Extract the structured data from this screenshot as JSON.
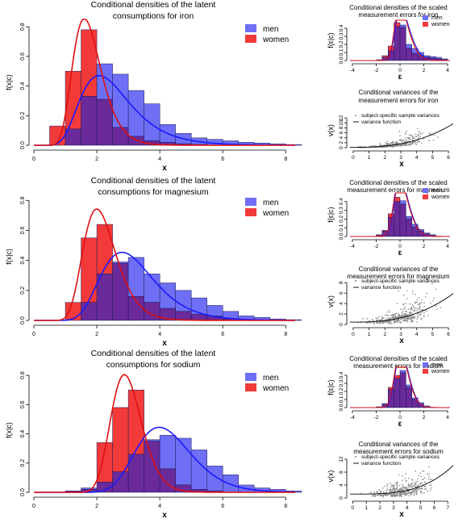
{
  "colors": {
    "men": "#6f6ff5",
    "women": "#f23a3a",
    "overlap": "#6a2a9a",
    "men_curve": "#1a1aff",
    "women_curve": "#e01010",
    "points": "#8a8a8a"
  },
  "chart_data": [
    {
      "id": "iron-density",
      "type": "bar",
      "title_lines": [
        "Conditional densities of the latent",
        "consumptions for iron"
      ],
      "xlabel": "x",
      "ylabel": "f(x|c)",
      "xlim": [
        0,
        8.3
      ],
      "ylim": [
        0,
        0.85
      ],
      "xticks": [
        0,
        2,
        4,
        6,
        8
      ],
      "yticks": [
        0.0,
        0.2,
        0.4,
        0.6,
        0.8
      ],
      "legend_position": "top-right",
      "bin_edges": [
        0.5,
        1.0,
        1.5,
        2.0,
        2.5,
        3.0,
        3.5,
        4.0,
        4.5,
        5.0,
        5.5,
        6.0,
        6.5,
        7.0,
        7.5,
        8.0,
        8.5
      ],
      "series": [
        {
          "name": "men",
          "values": [
            0.0,
            0.11,
            0.33,
            0.55,
            0.48,
            0.37,
            0.28,
            0.14,
            0.08,
            0.05,
            0.04,
            0.03,
            0.02,
            0.015,
            0.01,
            0.005
          ],
          "curve": {
            "dist": "lognormal",
            "mu": 0.875,
            "sigma": 0.38
          }
        },
        {
          "name": "women",
          "values": [
            0.13,
            0.5,
            0.78,
            0.31,
            0.12,
            0.06,
            0.03,
            0.02,
            0.01,
            0.005,
            0.0,
            0.0,
            0.0,
            0.0,
            0.0,
            0.0
          ],
          "curve": {
            "dist": "lognormal",
            "mu": 0.55,
            "sigma": 0.28
          }
        }
      ]
    },
    {
      "id": "iron-errors",
      "type": "bar",
      "title_lines": [
        "Conditional densities of the scaled",
        "measurement errors for iron"
      ],
      "xlabel": "ε",
      "ylabel": "f(ε|c)",
      "xlim": [
        -4.2,
        4.2
      ],
      "ylim": [
        0,
        0.5
      ],
      "xticks": [
        -4,
        -2,
        0,
        2,
        4
      ],
      "yticks": [
        0.0,
        0.1,
        0.2,
        0.3,
        0.4
      ],
      "legend_position": "top-right",
      "bin_edges": [
        -2.0,
        -1.5,
        -1.0,
        -0.5,
        0.0,
        0.5,
        1.0,
        1.5,
        2.0,
        2.5,
        3.0,
        3.5,
        4.0
      ],
      "series": [
        {
          "name": "men",
          "values": [
            0.01,
            0.04,
            0.12,
            0.42,
            0.44,
            0.2,
            0.15,
            0.1,
            0.06,
            0.05,
            0.04,
            0.02
          ],
          "curve": {
            "dist": "skewnormal",
            "loc": -0.4,
            "scale": 1.0,
            "alpha": 3
          }
        },
        {
          "name": "women",
          "values": [
            0.01,
            0.06,
            0.18,
            0.47,
            0.41,
            0.15,
            0.09,
            0.06,
            0.04,
            0.03,
            0.02,
            0.01
          ],
          "curve": {
            "dist": "skewnormal",
            "loc": -0.45,
            "scale": 0.95,
            "alpha": 3
          }
        }
      ]
    },
    {
      "id": "iron-variances",
      "type": "scatter",
      "title_lines": [
        "Conditional variances of the",
        "measurement errors for iron"
      ],
      "xlabel": "x",
      "ylabel": "v(x)",
      "xlim": [
        -0.2,
        6.3
      ],
      "ylim": [
        0,
        14
      ],
      "xticks": [
        0,
        1,
        2,
        3,
        4,
        5,
        6
      ],
      "yticks": [
        0,
        2,
        4,
        6,
        8,
        10,
        12
      ],
      "legend_position": "top-left",
      "legend": [
        "subject-specific sample variances",
        "variance function"
      ],
      "scatter_params": {
        "n": 320,
        "center": 2.7,
        "spread": 0.95,
        "seed": 11
      },
      "variance_function": {
        "a": 0.15,
        "b": 0.087,
        "p": 2.55
      }
    },
    {
      "id": "magnesium-density",
      "type": "bar",
      "title_lines": [
        "Conditional densities of the latent",
        "consumptions for magnesium"
      ],
      "xlabel": "x",
      "ylabel": "f(x|c)",
      "xlim": [
        0,
        8.3
      ],
      "ylim": [
        0,
        0.85
      ],
      "xticks": [
        0,
        2,
        4,
        6,
        8
      ],
      "yticks": [
        0.0,
        0.2,
        0.4,
        0.6,
        0.8
      ],
      "legend_position": "top-right",
      "bin_edges": [
        0.5,
        1.0,
        1.5,
        2.0,
        2.5,
        3.0,
        3.5,
        4.0,
        4.5,
        5.0,
        5.5,
        6.0,
        6.5,
        7.0,
        7.5,
        8.0,
        8.5
      ],
      "series": [
        {
          "name": "men",
          "values": [
            0.0,
            0.0,
            0.12,
            0.31,
            0.39,
            0.42,
            0.31,
            0.25,
            0.2,
            0.15,
            0.1,
            0.06,
            0.03,
            0.02,
            0.01,
            0.005
          ],
          "curve": {
            "dist": "lognormal",
            "mu": 1.12,
            "sigma": 0.3
          }
        },
        {
          "name": "women",
          "values": [
            0.0,
            0.12,
            0.55,
            0.64,
            0.38,
            0.16,
            0.12,
            0.08,
            0.06,
            0.04,
            0.03,
            0.01,
            0.0,
            0.0,
            0.0,
            0.0
          ],
          "curve": {
            "dist": "lognormal",
            "mu": 0.76,
            "sigma": 0.26
          }
        }
      ]
    },
    {
      "id": "magnesium-errors",
      "type": "bar",
      "title_lines": [
        "Conditional densities of the scaled",
        "measurement errors for magnesium"
      ],
      "xlabel": "ε",
      "ylabel": "f(ε|c)",
      "xlim": [
        -4.2,
        4.2
      ],
      "ylim": [
        0,
        0.5
      ],
      "xticks": [
        -4,
        -2,
        0,
        2,
        4
      ],
      "yticks": [
        0.0,
        0.1,
        0.2,
        0.3,
        0.4
      ],
      "legend_position": "top-right",
      "bin_edges": [
        -2.0,
        -1.5,
        -1.0,
        -0.5,
        0.0,
        0.5,
        1.0,
        1.5,
        2.0,
        2.5,
        3.0
      ],
      "series": [
        {
          "name": "men",
          "values": [
            0.01,
            0.06,
            0.22,
            0.4,
            0.41,
            0.23,
            0.14,
            0.08,
            0.04,
            0.02
          ],
          "curve": {
            "dist": "skewnormal",
            "loc": -0.45,
            "scale": 0.95,
            "alpha": 2.5
          }
        },
        {
          "name": "women",
          "values": [
            0.02,
            0.07,
            0.26,
            0.45,
            0.37,
            0.2,
            0.11,
            0.06,
            0.03,
            0.01
          ],
          "curve": {
            "dist": "skewnormal",
            "loc": -0.5,
            "scale": 0.95,
            "alpha": 2.5
          }
        }
      ]
    },
    {
      "id": "magnesium-variances",
      "type": "scatter",
      "title_lines": [
        "Conditional variances of the",
        "measurement errors for magnesium"
      ],
      "xlabel": "x",
      "ylabel": "v(x)",
      "xlim": [
        -0.2,
        6.3
      ],
      "ylim": [
        0,
        8.8
      ],
      "xticks": [
        0,
        1,
        2,
        3,
        4,
        5,
        6
      ],
      "yticks": [
        0,
        2,
        4,
        6,
        8
      ],
      "legend_position": "top-left",
      "legend": [
        "subject-specific sample variances",
        "variance function"
      ],
      "scatter_params": {
        "n": 360,
        "center": 2.9,
        "spread": 0.95,
        "seed": 23
      },
      "variance_function": {
        "a": 0.45,
        "b": 0.05,
        "p": 2.55
      }
    },
    {
      "id": "sodium-density",
      "type": "bar",
      "title_lines": [
        "Conditional densities of the latent",
        "consumptions for sodium"
      ],
      "xlabel": "x",
      "ylabel": "f(x|c)",
      "xlim": [
        0,
        8.3
      ],
      "ylim": [
        0,
        0.85
      ],
      "xticks": [
        0,
        2,
        4,
        6,
        8
      ],
      "yticks": [
        0.0,
        0.2,
        0.4,
        0.6,
        0.8
      ],
      "legend_position": "top-right",
      "bin_edges": [
        1.0,
        1.5,
        2.0,
        2.5,
        3.0,
        3.5,
        4.0,
        4.5,
        5.0,
        5.5,
        6.0,
        6.5,
        7.0,
        7.5,
        8.0,
        8.5
      ],
      "series": [
        {
          "name": "men",
          "values": [
            0.01,
            0.03,
            0.07,
            0.14,
            0.26,
            0.36,
            0.39,
            0.37,
            0.29,
            0.18,
            0.12,
            0.05,
            0.03,
            0.02,
            0.01
          ],
          "curve": {
            "dist": "lognormal",
            "mu": 1.43,
            "sigma": 0.22
          }
        },
        {
          "name": "women",
          "values": [
            0.01,
            0.02,
            0.34,
            0.58,
            0.7,
            0.35,
            0.16,
            0.05,
            0.02,
            0.01,
            0.0,
            0.0,
            0.0,
            0.0,
            0.0
          ],
          "curve": {
            "dist": "lognormal",
            "mu": 1.085,
            "sigma": 0.17
          }
        }
      ]
    },
    {
      "id": "sodium-errors",
      "type": "bar",
      "title_lines": [
        "Conditional densities of the scaled",
        "measurement errors for sodium"
      ],
      "xlabel": "ε",
      "ylabel": "f(ε|c)",
      "xlim": [
        -4.2,
        4.2
      ],
      "ylim": [
        0,
        0.5
      ],
      "xticks": [
        -4,
        -2,
        0,
        2,
        4
      ],
      "yticks": [
        0.0,
        0.1,
        0.2,
        0.3,
        0.4
      ],
      "legend_position": "top-right",
      "bin_edges": [
        -2.0,
        -1.5,
        -1.0,
        -0.5,
        0.0,
        0.5,
        1.0,
        1.5,
        2.0,
        2.5
      ],
      "series": [
        {
          "name": "men",
          "values": [
            0.01,
            0.05,
            0.22,
            0.36,
            0.46,
            0.28,
            0.12,
            0.06,
            0.02
          ],
          "curve": {
            "dist": "skewnormal",
            "loc": -0.35,
            "scale": 0.85,
            "alpha": 2.0
          }
        },
        {
          "name": "women",
          "values": [
            0.01,
            0.04,
            0.25,
            0.4,
            0.43,
            0.25,
            0.1,
            0.04,
            0.01
          ],
          "curve": {
            "dist": "skewnormal",
            "loc": -0.4,
            "scale": 0.85,
            "alpha": 2.0
          }
        }
      ]
    },
    {
      "id": "sodium-variances",
      "type": "scatter",
      "title_lines": [
        "Conditional variances of the",
        "measurement errors for sodium"
      ],
      "xlabel": "x",
      "ylabel": "v(x)",
      "xlim": [
        -0.2,
        7.4
      ],
      "ylim": [
        0,
        13.5
      ],
      "xticks": [
        0,
        1,
        2,
        3,
        4,
        5,
        6,
        7
      ],
      "yticks": [
        0,
        4,
        8,
        12
      ],
      "legend_position": "top-left",
      "legend": [
        "subject-specific sample variances",
        "variance function"
      ],
      "scatter_params": {
        "n": 380,
        "center": 3.6,
        "spread": 0.95,
        "seed": 37
      },
      "variance_function": {
        "a": 1.2,
        "b": 0.012,
        "p": 3.3
      }
    }
  ]
}
